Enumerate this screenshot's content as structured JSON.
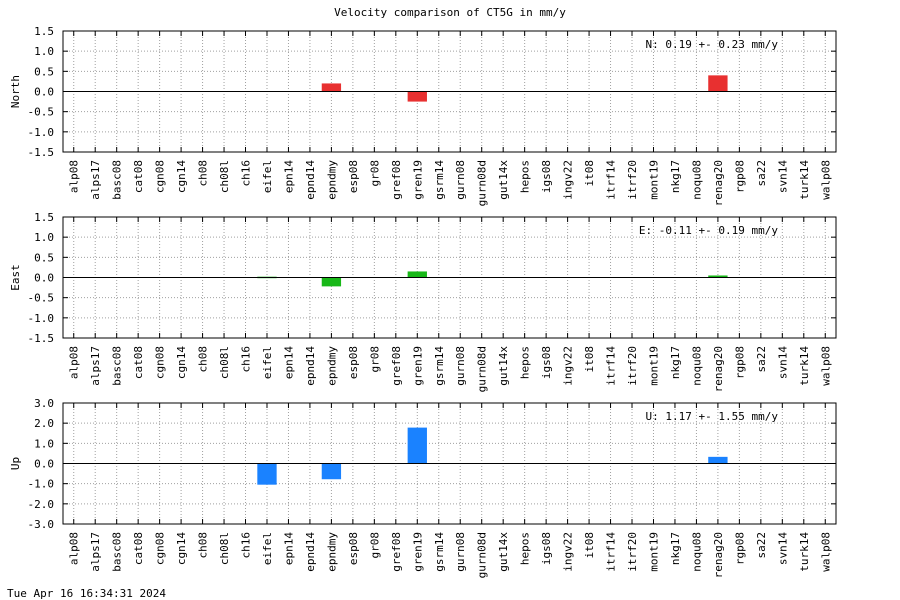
{
  "title": "Velocity comparison of CT5G in mm/y",
  "timestamp": "Tue Apr 16 16:34:31 2024",
  "chart_data": [
    {
      "type": "bar",
      "ylabel": "North",
      "annotation": "N:   0.19 +-  0.23 mm/y",
      "color": "#e83030",
      "ylim": [
        -1.5,
        1.5
      ],
      "yticks": [
        "1.5",
        "1.0",
        "0.5",
        "0.0",
        "-0.5",
        "-1.0",
        "-1.5"
      ],
      "grid": true,
      "categories": [
        "alp08",
        "alps17",
        "basc08",
        "cat08",
        "cgn08",
        "cgn14",
        "ch08",
        "ch08l",
        "ch16",
        "eifel",
        "epn14",
        "epnd14",
        "epndmy",
        "esp08",
        "gr08",
        "gref08",
        "gren19",
        "gsrm14",
        "gurn08",
        "gurn08d",
        "gut14x",
        "hepos",
        "igs08",
        "ingv22",
        "it08",
        "itrf14",
        "itrf20",
        "mont19",
        "nkg17",
        "noqu08",
        "renag20",
        "rgp08",
        "sa22",
        "svn14",
        "turk14",
        "walp08"
      ],
      "values": [
        0,
        0,
        0,
        0,
        0,
        0,
        0,
        0,
        0,
        0,
        0,
        0,
        0.2,
        0,
        0,
        0,
        -0.25,
        0,
        0,
        0,
        0,
        0,
        0,
        0,
        0,
        0,
        0,
        0,
        0,
        0,
        0.4,
        0,
        0,
        0,
        0,
        0
      ]
    },
    {
      "type": "bar",
      "ylabel": "East",
      "annotation": "E:  -0.11 +-  0.19 mm/y",
      "color": "#18b818",
      "ylim": [
        -1.5,
        1.5
      ],
      "yticks": [
        "1.5",
        "1.0",
        "0.5",
        "0.0",
        "-0.5",
        "-1.0",
        "-1.5"
      ],
      "grid": true,
      "categories": [
        "alp08",
        "alps17",
        "basc08",
        "cat08",
        "cgn08",
        "cgn14",
        "ch08",
        "ch08l",
        "ch16",
        "eifel",
        "epn14",
        "epnd14",
        "epndmy",
        "esp08",
        "gr08",
        "gref08",
        "gren19",
        "gsrm14",
        "gurn08",
        "gurn08d",
        "gut14x",
        "hepos",
        "igs08",
        "ingv22",
        "it08",
        "itrf14",
        "itrf20",
        "mont19",
        "nkg17",
        "noqu08",
        "renag20",
        "rgp08",
        "sa22",
        "svn14",
        "turk14",
        "walp08"
      ],
      "values": [
        0,
        0,
        0,
        0,
        0,
        0,
        0,
        0,
        0,
        0.02,
        0,
        0,
        -0.22,
        0,
        0,
        0,
        0.15,
        0,
        0,
        0,
        0,
        0,
        0,
        0,
        0,
        0,
        0,
        0,
        0,
        0,
        0.05,
        0,
        0,
        0,
        0,
        0
      ]
    },
    {
      "type": "bar",
      "ylabel": "Up",
      "annotation": "U:   1.17 +-  1.55 mm/y",
      "color": "#1a82ff",
      "ylim": [
        -3.0,
        3.0
      ],
      "yticks": [
        "3.0",
        "2.0",
        "1.0",
        "0.0",
        "-1.0",
        "-2.0",
        "-3.0"
      ],
      "grid": true,
      "categories": [
        "alp08",
        "alps17",
        "basc08",
        "cat08",
        "cgn08",
        "cgn14",
        "ch08",
        "ch08l",
        "ch16",
        "eifel",
        "epn14",
        "epnd14",
        "epndmy",
        "esp08",
        "gr08",
        "gref08",
        "gren19",
        "gsrm14",
        "gurn08",
        "gurn08d",
        "gut14x",
        "hepos",
        "igs08",
        "ingv22",
        "it08",
        "itrf14",
        "itrf20",
        "mont19",
        "nkg17",
        "noqu08",
        "renag20",
        "rgp08",
        "sa22",
        "svn14",
        "turk14",
        "walp08"
      ],
      "values": [
        0,
        0,
        0,
        0,
        0,
        0,
        0,
        0,
        0,
        -1.05,
        0,
        0,
        -0.78,
        0,
        0,
        0,
        1.78,
        0,
        0,
        0,
        0,
        0,
        0,
        0,
        0,
        0,
        0,
        0,
        0,
        0,
        0.33,
        0,
        0,
        0,
        0,
        0
      ]
    }
  ]
}
